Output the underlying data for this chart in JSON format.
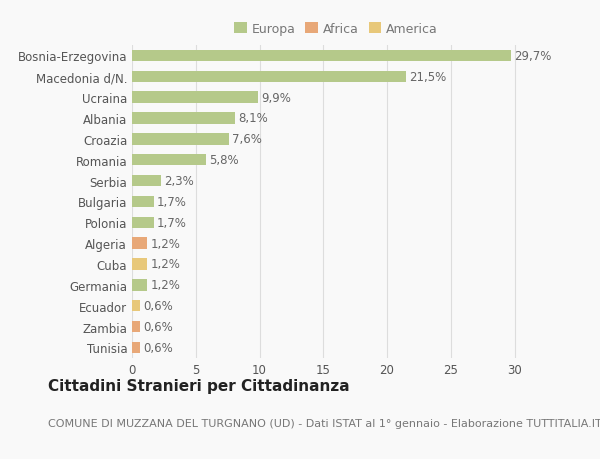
{
  "categories": [
    "Tunisia",
    "Zambia",
    "Ecuador",
    "Germania",
    "Cuba",
    "Algeria",
    "Polonia",
    "Bulgaria",
    "Serbia",
    "Romania",
    "Croazia",
    "Albania",
    "Ucraina",
    "Macedonia d/N.",
    "Bosnia-Erzegovina"
  ],
  "values": [
    0.6,
    0.6,
    0.6,
    1.2,
    1.2,
    1.2,
    1.7,
    1.7,
    2.3,
    5.8,
    7.6,
    8.1,
    9.9,
    21.5,
    29.7
  ],
  "labels": [
    "0,6%",
    "0,6%",
    "0,6%",
    "1,2%",
    "1,2%",
    "1,2%",
    "1,7%",
    "1,7%",
    "2,3%",
    "5,8%",
    "7,6%",
    "8,1%",
    "9,9%",
    "21,5%",
    "29,7%"
  ],
  "colors": [
    "#E8A878",
    "#E8A878",
    "#E8C87A",
    "#B5C98A",
    "#E8C87A",
    "#E8A878",
    "#B5C98A",
    "#B5C98A",
    "#B5C98A",
    "#B5C98A",
    "#B5C98A",
    "#B5C98A",
    "#B5C98A",
    "#B5C98A",
    "#B5C98A"
  ],
  "legend": {
    "Europa": "#B5C98A",
    "Africa": "#E8A878",
    "America": "#E8C87A"
  },
  "title": "Cittadini Stranieri per Cittadinanza",
  "subtitle": "COMUNE DI MUZZANA DEL TURGNANO (UD) - Dati ISTAT al 1° gennaio - Elaborazione TUTTITALIA.IT",
  "xlim": [
    0,
    32
  ],
  "xticks": [
    0,
    5,
    10,
    15,
    20,
    25,
    30
  ],
  "background_color": "#f9f9f9",
  "grid_color": "#dddddd",
  "bar_height": 0.55,
  "title_fontsize": 11,
  "subtitle_fontsize": 8,
  "tick_fontsize": 8.5,
  "label_fontsize": 8.5,
  "legend_fontsize": 9
}
